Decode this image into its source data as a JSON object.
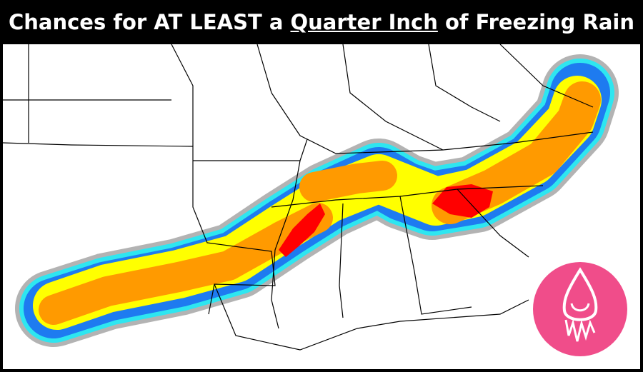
{
  "title": {
    "before": "Chances for AT LEAST a ",
    "emphasis": "Quarter Inch",
    "after": " of Freezing Rain"
  }
}
